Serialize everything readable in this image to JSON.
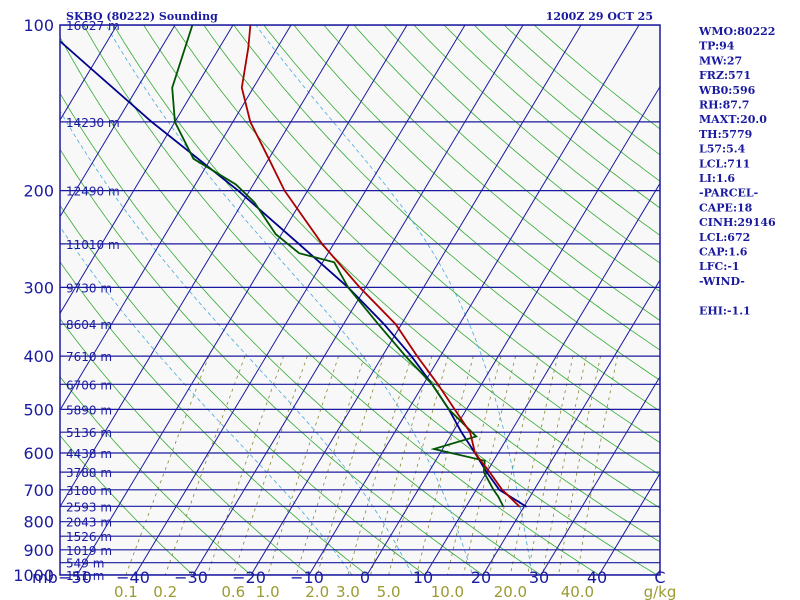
{
  "header": {
    "station": "SKBO (80222) Sounding",
    "time": "1200Z 29 OCT 25"
  },
  "sidebar": [
    "WMO:80222",
    "TP:94",
    "MW:27",
    "FRZ:571",
    "WB0:596",
    "RH:87.7",
    "MAXT:20.0",
    "TH:5779",
    "L57:5.4",
    "LCL:711",
    "LI:1.6",
    "-PARCEL-",
    "CAPE:18",
    "CINH:29146",
    "LCL:672",
    "CAP:1.6",
    "LFC:-1",
    "-WIND-",
    "",
    "EHI:-1.1"
  ],
  "colors": {
    "frame": "#1a1aa0",
    "isobar": "#1a1aa0",
    "isotherm": "#1a1aa0",
    "dry_adiabat": "#33aa33",
    "moist_adiabat": "#44aadd",
    "mixing_ratio": "#888833",
    "temperature": "#aa0000",
    "dewpoint": "#005500",
    "parcel": "#00008b",
    "plot_bg": "#f8f8f8"
  },
  "chart_data": {
    "type": "skew-t",
    "title": "SKBO (80222) Sounding 1200Z 29 OCT 25",
    "pressure_levels": [
      100,
      200,
      300,
      400,
      500,
      600,
      700,
      800,
      900,
      1000
    ],
    "pressure_range": [
      100,
      1000
    ],
    "pressure_axis_label": "mb",
    "temperature_ticks": [
      "−50",
      "−40",
      "−30",
      "−20",
      "−10",
      "0",
      "10",
      "20",
      "30",
      "40",
      "C"
    ],
    "temperature_tick_values": [
      -50,
      -40,
      -30,
      -20,
      -10,
      0,
      10,
      20,
      30,
      40
    ],
    "height_labels": [
      {
        "p": 100,
        "text": "16627 m"
      },
      {
        "p": 150,
        "text": "14230 m"
      },
      {
        "p": 200,
        "text": "12490 m"
      },
      {
        "p": 250,
        "text": "11010 m"
      },
      {
        "p": 300,
        "text": "9730 m"
      },
      {
        "p": 350,
        "text": "8604 m"
      },
      {
        "p": 400,
        "text": "7610 m"
      },
      {
        "p": 450,
        "text": "6706 m"
      },
      {
        "p": 500,
        "text": "5890 m"
      },
      {
        "p": 550,
        "text": "5136 m"
      },
      {
        "p": 600,
        "text": "4438 m"
      },
      {
        "p": 650,
        "text": "3788 m"
      },
      {
        "p": 700,
        "text": "3180 m"
      },
      {
        "p": 750,
        "text": "2593 m"
      },
      {
        "p": 800,
        "text": "2043 m"
      },
      {
        "p": 850,
        "text": "1526 m"
      },
      {
        "p": 900,
        "text": "1019 m"
      },
      {
        "p": 950,
        "text": "549 m"
      },
      {
        "p": 1000,
        "text": "111 m"
      }
    ],
    "mixing_ratio_labels": [
      "0.1",
      "0.2",
      "0.6",
      "1.0",
      "2.0",
      "3.0",
      "5.0",
      "10.0",
      "20.0",
      "40.0"
    ],
    "mixing_ratio_values": [
      0.1,
      0.2,
      0.6,
      1.0,
      2.0,
      3.0,
      5.0,
      10.0,
      20.0,
      40.0
    ],
    "mixing_ratio_unit": "g/kg",
    "dry_adiabats_theta_c": [
      -30,
      -20,
      -10,
      0,
      10,
      20,
      30,
      40,
      50,
      60,
      70,
      80,
      90,
      100,
      110,
      120,
      130,
      140,
      150,
      160,
      170,
      180,
      190,
      200
    ],
    "moist_adiabats_start_c": [
      0,
      10,
      20,
      30
    ],
    "series": [
      {
        "name": "Temperature",
        "points": [
          {
            "p": 752,
            "t": 19.3
          },
          {
            "p": 700,
            "t": 14.5
          },
          {
            "p": 650,
            "t": 10.5
          },
          {
            "p": 600,
            "t": 6.0
          },
          {
            "p": 550,
            "t": 3.0
          },
          {
            "p": 500,
            "t": -2.0
          },
          {
            "p": 450,
            "t": -7.5
          },
          {
            "p": 400,
            "t": -14.0
          },
          {
            "p": 350,
            "t": -21.0
          },
          {
            "p": 300,
            "t": -31.0
          },
          {
            "p": 250,
            "t": -42.0
          },
          {
            "p": 200,
            "t": -54.0
          },
          {
            "p": 175,
            "t": -60.0
          },
          {
            "p": 150,
            "t": -67.0
          },
          {
            "p": 130,
            "t": -72.0
          },
          {
            "p": 110,
            "t": -75.0
          },
          {
            "p": 100,
            "t": -77.0
          },
          {
            "p": 95,
            "t": -79.0
          }
        ]
      },
      {
        "name": "Dewpoint",
        "points": [
          {
            "p": 752,
            "t": 16.5
          },
          {
            "p": 720,
            "t": 14.5
          },
          {
            "p": 700,
            "t": 13.0
          },
          {
            "p": 650,
            "t": 9.5
          },
          {
            "p": 620,
            "t": 8.5
          },
          {
            "p": 590,
            "t": -1.5
          },
          {
            "p": 560,
            "t": 4.5
          },
          {
            "p": 500,
            "t": -3.0
          },
          {
            "p": 450,
            "t": -8.5
          },
          {
            "p": 400,
            "t": -16.0
          },
          {
            "p": 350,
            "t": -24.0
          },
          {
            "p": 300,
            "t": -33.0
          },
          {
            "p": 270,
            "t": -38.0
          },
          {
            "p": 260,
            "t": -45.0
          },
          {
            "p": 240,
            "t": -51.0
          },
          {
            "p": 210,
            "t": -58.0
          },
          {
            "p": 195,
            "t": -63.0
          },
          {
            "p": 175,
            "t": -73.0
          },
          {
            "p": 150,
            "t": -80.0
          },
          {
            "p": 130,
            "t": -84.0
          },
          {
            "p": 100,
            "t": -87.0
          },
          {
            "p": 95,
            "t": -89.0
          }
        ]
      },
      {
        "name": "Parcel",
        "points": [
          {
            "p": 752,
            "t": 20.5
          },
          {
            "p": 700,
            "t": 14.0
          },
          {
            "p": 650,
            "t": 10.0
          },
          {
            "p": 600,
            "t": 6.0
          },
          {
            "p": 550,
            "t": 1.5
          },
          {
            "p": 500,
            "t": -3.0
          },
          {
            "p": 450,
            "t": -8.5
          },
          {
            "p": 400,
            "t": -15.0
          },
          {
            "p": 350,
            "t": -23.0
          },
          {
            "p": 300,
            "t": -33.0
          },
          {
            "p": 250,
            "t": -46.0
          },
          {
            "p": 200,
            "t": -62.0
          },
          {
            "p": 150,
            "t": -84.0
          },
          {
            "p": 120,
            "t": -100.0
          },
          {
            "p": 100,
            "t": -113.0
          },
          {
            "p": 95,
            "t": -116.0
          }
        ]
      }
    ]
  }
}
